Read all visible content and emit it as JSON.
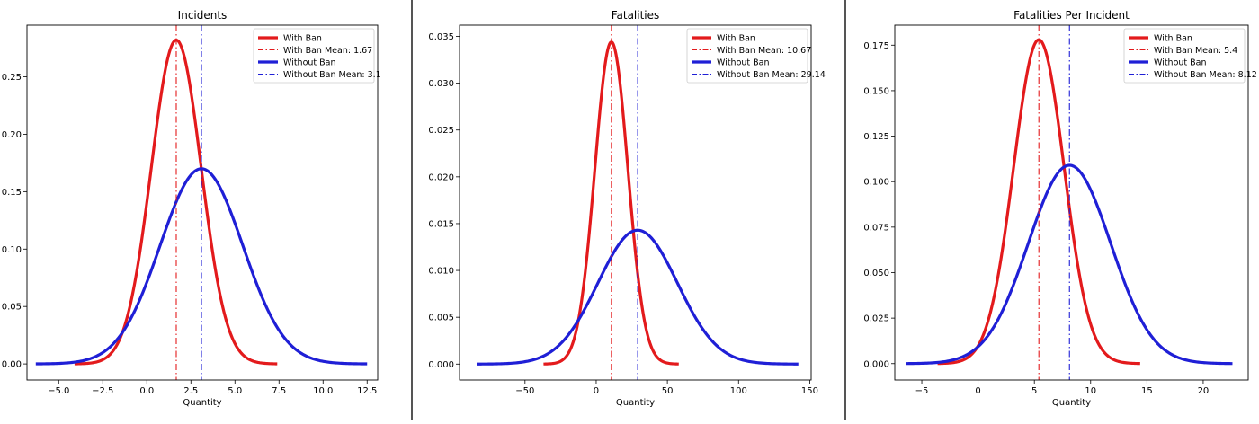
{
  "colors": {
    "with_ban": "#e31a1c",
    "without_ban": "#1f1fd6",
    "axis": "#000000"
  },
  "chart_data": [
    {
      "type": "line",
      "title": "Incidents",
      "xlabel": "Quantity",
      "ylabel": "",
      "xlim": [
        -6.8,
        13.1
      ],
      "ylim": [
        -0.014,
        0.295
      ],
      "xticks": [
        -5.0,
        -2.5,
        0.0,
        2.5,
        5.0,
        7.5,
        10.0,
        12.5
      ],
      "xtick_labels": [
        "−5.0",
        "−2.5",
        "0.0",
        "2.5",
        "5.0",
        "7.5",
        "10.0",
        "12.5"
      ],
      "yticks": [
        0.0,
        0.05,
        0.1,
        0.15,
        0.2,
        0.25
      ],
      "ytick_labels": [
        "0.00",
        "0.05",
        "0.10",
        "0.15",
        "0.20",
        "0.25"
      ],
      "legend_position": "top-right",
      "legend": [
        "With Ban",
        "With Ban Mean: 1.67",
        "Without Ban",
        "Without Ban Mean: 3.1"
      ],
      "series": [
        {
          "name": "With Ban",
          "kind": "normal",
          "mean": 1.67,
          "peak": 0.282,
          "x_range": [
            -4.1,
            7.4
          ],
          "style": "solid"
        },
        {
          "name": "Without Ban",
          "kind": "normal",
          "mean": 3.1,
          "peak": 0.17,
          "x_range": [
            -6.3,
            12.5
          ],
          "style": "solid"
        }
      ],
      "vlines": [
        {
          "name": "With Ban Mean: 1.67",
          "x": 1.67,
          "style": "dashdot",
          "series": "with_ban"
        },
        {
          "name": "Without Ban Mean: 3.1",
          "x": 3.1,
          "style": "dashdot",
          "series": "without_ban"
        }
      ]
    },
    {
      "type": "line",
      "title": "Fatalities",
      "xlabel": "Quantity",
      "ylabel": "",
      "xlim": [
        -96,
        151
      ],
      "ylim": [
        -0.0017,
        0.0362
      ],
      "xticks": [
        -50,
        0,
        50,
        100,
        150
      ],
      "xtick_labels": [
        "−50",
        "0",
        "50",
        "100",
        "150"
      ],
      "yticks": [
        0.0,
        0.005,
        0.01,
        0.015,
        0.02,
        0.025,
        0.03,
        0.035
      ],
      "ytick_labels": [
        "0.000",
        "0.005",
        "0.010",
        "0.015",
        "0.020",
        "0.025",
        "0.030",
        "0.035"
      ],
      "legend_position": "top-right",
      "legend": [
        "With Ban",
        "With Ban Mean: 10.67",
        "Without Ban",
        "Without Ban Mean: 29.14"
      ],
      "series": [
        {
          "name": "With Ban",
          "kind": "normal",
          "mean": 10.67,
          "peak": 0.0344,
          "x_range": [
            -37,
            58
          ],
          "style": "solid"
        },
        {
          "name": "Without Ban",
          "kind": "normal",
          "mean": 29.14,
          "peak": 0.0143,
          "x_range": [
            -84,
            142
          ],
          "style": "solid"
        }
      ],
      "vlines": [
        {
          "name": "With Ban Mean: 10.67",
          "x": 10.67,
          "style": "dashdot",
          "series": "with_ban"
        },
        {
          "name": "Without Ban Mean: 29.14",
          "x": 29.14,
          "style": "dashdot",
          "series": "without_ban"
        }
      ]
    },
    {
      "type": "line",
      "title": "Fatalities Per Incident",
      "xlabel": "Quantity",
      "ylabel": "",
      "xlim": [
        -7.4,
        24.0
      ],
      "ylim": [
        -0.009,
        0.186
      ],
      "xticks": [
        -5,
        0,
        5,
        10,
        15,
        20
      ],
      "xtick_labels": [
        "−5",
        "0",
        "5",
        "10",
        "15",
        "20"
      ],
      "yticks": [
        0.0,
        0.025,
        0.05,
        0.075,
        0.1,
        0.125,
        0.15,
        0.175
      ],
      "ytick_labels": [
        "0.000",
        "0.025",
        "0.050",
        "0.075",
        "0.100",
        "0.125",
        "0.150",
        "0.175"
      ],
      "legend_position": "top-right",
      "legend": [
        "With Ban",
        "With Ban Mean: 5.4",
        "Without Ban",
        "Without Ban Mean: 8.12"
      ],
      "series": [
        {
          "name": "With Ban",
          "kind": "normal",
          "mean": 5.4,
          "peak": 0.178,
          "x_range": [
            -3.6,
            14.4
          ],
          "style": "solid"
        },
        {
          "name": "Without Ban",
          "kind": "normal",
          "mean": 8.12,
          "peak": 0.109,
          "x_range": [
            -6.4,
            22.6
          ],
          "style": "solid"
        }
      ],
      "vlines": [
        {
          "name": "With Ban Mean: 5.4",
          "x": 5.4,
          "style": "dashdot",
          "series": "with_ban"
        },
        {
          "name": "Without Ban Mean: 8.12",
          "x": 8.12,
          "style": "dashdot",
          "series": "without_ban"
        }
      ]
    }
  ]
}
